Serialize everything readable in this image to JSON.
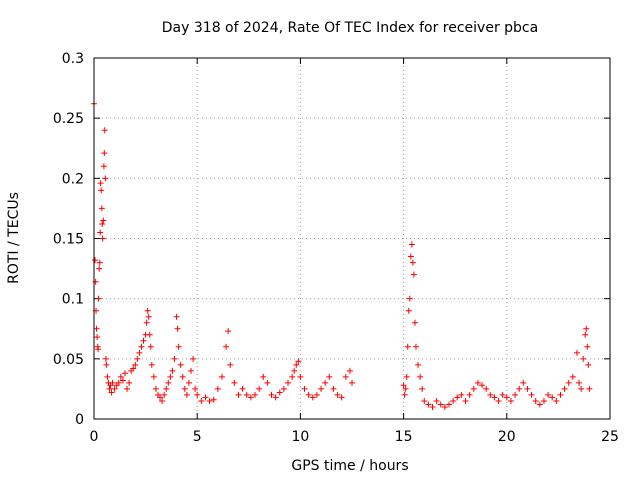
{
  "chart_data": {
    "type": "scatter",
    "title": "Day 318 of 2024, Rate Of TEC Index for receiver pbca",
    "xlabel": "GPS time / hours",
    "ylabel": "ROTI / TECUs",
    "xlim": [
      0,
      25
    ],
    "ylim": [
      0,
      0.3
    ],
    "xticks": [
      0,
      5,
      10,
      15,
      20,
      25
    ],
    "yticks": [
      0,
      0.05,
      0.1,
      0.15,
      0.2,
      0.25,
      0.3
    ],
    "xtick_labels": [
      "0",
      "5",
      "10",
      "15",
      "20",
      "25"
    ],
    "ytick_labels": [
      "0",
      "0.05",
      "0.1",
      "0.15",
      "0.2",
      "0.25",
      "0.3"
    ],
    "grid": true,
    "legend": "none",
    "marker": "+",
    "color": "#ff0000",
    "series": [
      {
        "x": [
          0.0,
          0.05,
          0.08,
          0.1,
          0.12,
          0.15,
          0.18,
          0.2,
          0.22,
          0.25,
          0.28,
          0.3,
          0.32,
          0.35,
          0.38,
          0.4,
          0.42,
          0.45,
          0.48,
          0.5,
          0.52,
          0.55,
          0.58,
          0.6,
          0.65,
          0.7,
          0.75,
          0.8,
          0.85,
          0.9,
          1.0,
          1.1,
          1.2,
          1.3,
          1.4,
          1.5,
          1.6,
          1.7,
          1.8,
          1.9,
          2.0,
          2.1,
          2.2,
          2.3,
          2.4,
          2.5,
          2.55,
          2.6,
          2.65,
          2.7,
          2.75,
          2.8,
          2.9,
          3.0,
          3.1,
          3.2,
          3.3,
          3.4,
          3.5,
          3.6,
          3.7,
          3.8,
          3.9,
          4.0,
          4.05,
          4.1,
          4.2,
          4.3,
          4.4,
          4.5,
          4.6,
          4.7,
          4.8,
          4.9,
          5.0,
          5.2,
          5.4,
          5.6,
          5.8,
          6.0,
          6.2,
          6.4,
          6.5,
          6.6,
          6.8,
          7.0,
          7.2,
          7.4,
          7.6,
          7.8,
          8.0,
          8.2,
          8.4,
          8.6,
          8.8,
          9.0,
          9.2,
          9.4,
          9.6,
          9.7,
          9.8,
          9.9,
          10.0,
          10.2,
          10.4,
          10.6,
          10.8,
          11.0,
          11.2,
          11.4,
          11.6,
          11.8,
          12.0,
          12.2,
          12.4,
          12.5,
          15.0,
          15.05,
          15.1,
          15.15,
          15.2,
          15.25,
          15.3,
          15.35,
          15.4,
          15.45,
          15.5,
          15.55,
          15.6,
          15.7,
          15.8,
          15.9,
          16.0,
          16.2,
          16.4,
          16.6,
          16.8,
          17.0,
          17.2,
          17.4,
          17.6,
          17.8,
          18.0,
          18.2,
          18.4,
          18.6,
          18.8,
          19.0,
          19.2,
          19.4,
          19.6,
          19.8,
          20.0,
          20.2,
          20.4,
          20.6,
          20.8,
          21.0,
          21.2,
          21.4,
          21.6,
          21.8,
          22.0,
          22.2,
          22.4,
          22.6,
          22.8,
          23.0,
          23.2,
          23.4,
          23.5,
          23.6,
          23.7,
          23.8,
          23.85,
          23.9,
          23.95,
          24.0
        ],
        "y": [
          0.262,
          0.132,
          0.114,
          0.09,
          0.075,
          0.068,
          0.06,
          0.058,
          0.1,
          0.125,
          0.13,
          0.155,
          0.196,
          0.19,
          0.175,
          0.162,
          0.15,
          0.165,
          0.21,
          0.221,
          0.24,
          0.2,
          0.05,
          0.045,
          0.035,
          0.03,
          0.025,
          0.028,
          0.022,
          0.03,
          0.025,
          0.028,
          0.03,
          0.035,
          0.032,
          0.038,
          0.025,
          0.03,
          0.04,
          0.042,
          0.045,
          0.05,
          0.055,
          0.06,
          0.065,
          0.07,
          0.08,
          0.09,
          0.085,
          0.07,
          0.06,
          0.045,
          0.035,
          0.025,
          0.02,
          0.018,
          0.015,
          0.02,
          0.025,
          0.03,
          0.035,
          0.04,
          0.05,
          0.085,
          0.075,
          0.06,
          0.045,
          0.035,
          0.025,
          0.02,
          0.03,
          0.04,
          0.05,
          0.025,
          0.02,
          0.015,
          0.018,
          0.015,
          0.016,
          0.025,
          0.035,
          0.06,
          0.073,
          0.045,
          0.03,
          0.02,
          0.025,
          0.02,
          0.018,
          0.02,
          0.025,
          0.035,
          0.03,
          0.02,
          0.018,
          0.022,
          0.025,
          0.03,
          0.035,
          0.04,
          0.045,
          0.048,
          0.035,
          0.025,
          0.02,
          0.018,
          0.02,
          0.025,
          0.03,
          0.035,
          0.025,
          0.02,
          0.018,
          0.035,
          0.04,
          0.03,
          0.028,
          0.02,
          0.025,
          0.035,
          0.06,
          0.09,
          0.1,
          0.135,
          0.145,
          0.13,
          0.12,
          0.08,
          0.06,
          0.045,
          0.035,
          0.025,
          0.015,
          0.012,
          0.01,
          0.015,
          0.012,
          0.01,
          0.012,
          0.015,
          0.018,
          0.02,
          0.015,
          0.02,
          0.025,
          0.03,
          0.028,
          0.025,
          0.02,
          0.018,
          0.015,
          0.02,
          0.018,
          0.015,
          0.02,
          0.025,
          0.03,
          0.025,
          0.02,
          0.015,
          0.012,
          0.015,
          0.02,
          0.018,
          0.015,
          0.02,
          0.025,
          0.03,
          0.035,
          0.055,
          0.03,
          0.025,
          0.05,
          0.07,
          0.075,
          0.06,
          0.045,
          0.025
        ]
      }
    ]
  }
}
